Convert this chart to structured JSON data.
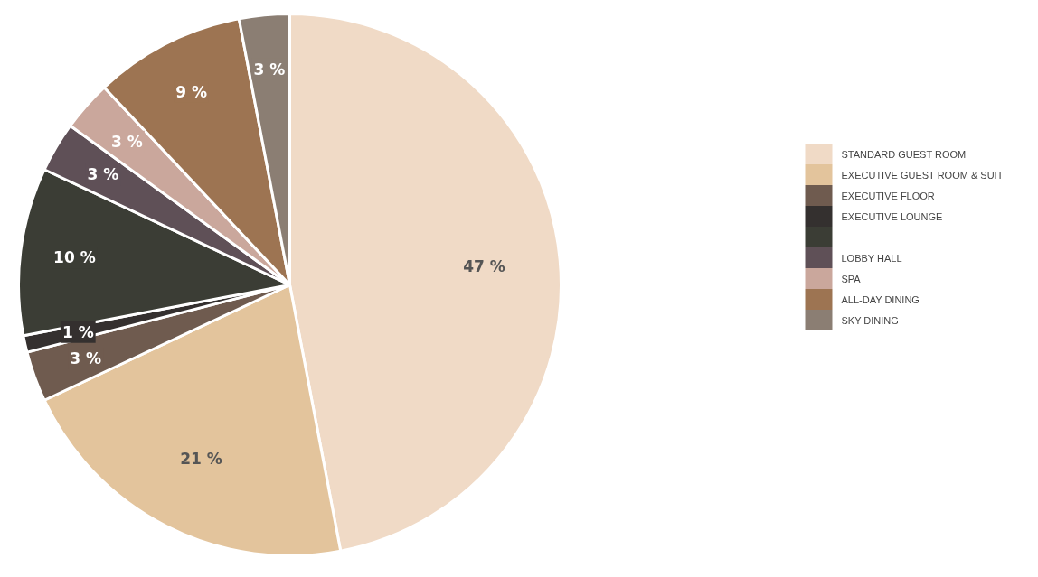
{
  "chart_data": {
    "type": "pie",
    "categories": [
      "STANDARD GUEST ROOM",
      "EXECUTIVE GUEST ROOM & SUIT",
      "EXECUTIVE FLOOR",
      "EXECUTIVE LOUNGE",
      null,
      "LOBBY HALL",
      "SPA",
      "ALL-DAY DINING",
      "SKY DINING"
    ],
    "values": [
      47,
      21,
      3,
      1,
      10,
      3,
      3,
      9,
      3
    ],
    "colors": [
      "#f0dac6",
      "#e3c49c",
      "#6f5b4f",
      "#34302f",
      "#3b3d35",
      "#5f5057",
      "#caa79c",
      "#9d7452",
      "#8b7e73"
    ],
    "value_labels": [
      "47 %",
      "21 %",
      "3 %",
      "1 %",
      "10 %",
      "3 %",
      "3 %",
      "9 %",
      "3 %"
    ],
    "legend": "right"
  }
}
